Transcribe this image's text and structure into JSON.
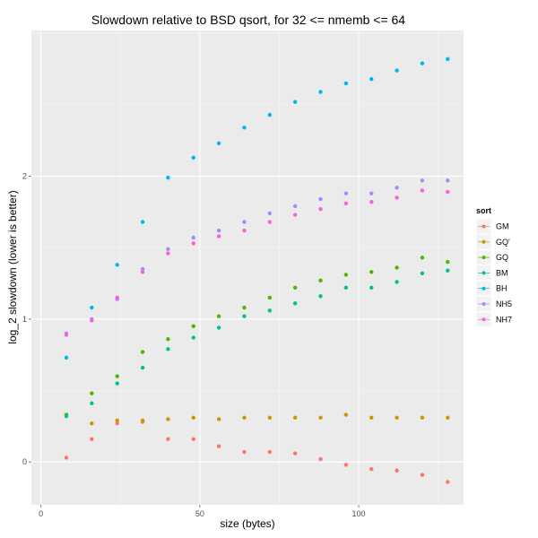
{
  "chart_data": {
    "type": "scatter",
    "title": "Slowdown relative to BSD qsort, for 32 <= nmemb <= 64",
    "xlabel": "size (bytes)",
    "ylabel": "log_2 slowdown (lower is better)",
    "xlim": [
      -3,
      133
    ],
    "ylim": [
      -0.3,
      3.02
    ],
    "x_ticks": [
      0,
      50,
      100
    ],
    "y_ticks": [
      0,
      1,
      2
    ],
    "grid": true,
    "legend": {
      "title": "sort",
      "placement": "right"
    },
    "x": [
      8,
      16,
      24,
      32,
      40,
      48,
      56,
      64,
      72,
      80,
      88,
      96,
      104,
      112,
      120,
      128
    ],
    "series": [
      {
        "name": "GM",
        "color": "#F8766D",
        "values": [
          0.03,
          0.16,
          0.27,
          0.28,
          0.16,
          0.16,
          0.11,
          0.07,
          0.07,
          0.06,
          0.02,
          -0.02,
          -0.05,
          -0.06,
          -0.09,
          -0.14
        ]
      },
      {
        "name": "GQ'",
        "color": "#C49A00",
        "values": [
          0.33,
          0.27,
          0.29,
          0.29,
          0.3,
          0.31,
          0.3,
          0.31,
          0.31,
          0.31,
          0.31,
          0.33,
          0.31,
          0.31,
          0.31,
          0.31
        ]
      },
      {
        "name": "GQ",
        "color": "#53B400",
        "values": [
          0.33,
          0.48,
          0.6,
          0.77,
          0.86,
          0.95,
          1.02,
          1.08,
          1.15,
          1.22,
          1.27,
          1.31,
          1.33,
          1.36,
          1.43,
          1.4
        ]
      },
      {
        "name": "BM",
        "color": "#00C094",
        "values": [
          0.32,
          0.41,
          0.55,
          0.66,
          0.79,
          0.87,
          0.94,
          1.02,
          1.06,
          1.11,
          1.16,
          1.22,
          1.22,
          1.26,
          1.32,
          1.34
        ]
      },
      {
        "name": "BH",
        "color": "#00B6EB",
        "values": [
          0.73,
          1.08,
          1.38,
          1.68,
          1.99,
          2.13,
          2.23,
          2.34,
          2.43,
          2.52,
          2.59,
          2.65,
          2.68,
          2.74,
          2.79,
          2.82
        ]
      },
      {
        "name": "NH5",
        "color": "#A58AFF",
        "values": [
          0.9,
          1.0,
          1.14,
          1.35,
          1.49,
          1.57,
          1.62,
          1.68,
          1.74,
          1.79,
          1.84,
          1.88,
          1.88,
          1.92,
          1.97,
          1.97
        ]
      },
      {
        "name": "NH7",
        "color": "#FB61D7",
        "values": [
          0.89,
          0.99,
          1.15,
          1.33,
          1.46,
          1.53,
          1.58,
          1.62,
          1.68,
          1.73,
          1.77,
          1.81,
          1.82,
          1.85,
          1.9,
          1.89
        ]
      }
    ]
  }
}
